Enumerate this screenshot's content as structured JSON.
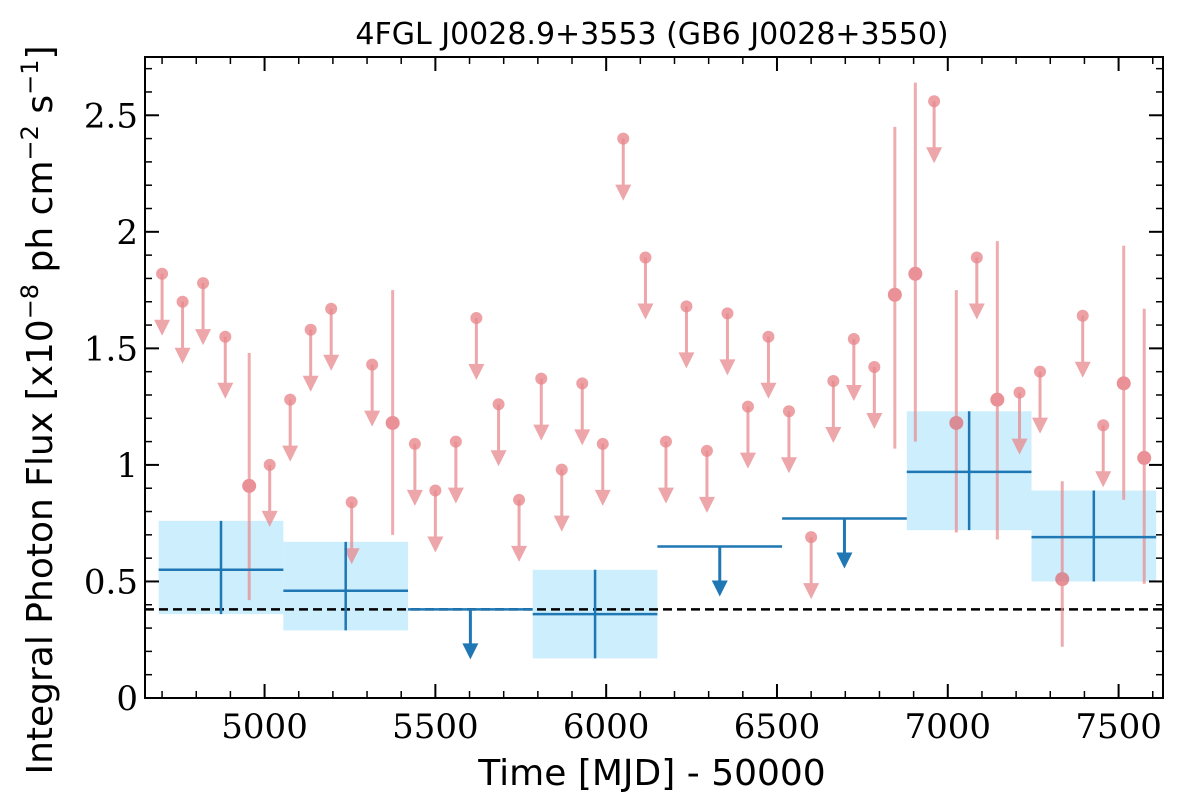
{
  "chart_data": {
    "type": "scatter",
    "title": "4FGL J0028.9+3553 (GB6 J0028+3550)",
    "xlabel": "Time [MJD] - 50000",
    "ylabel": "Integral Photon Flux [x10",
    "ylabel_exp1": "−8",
    "ylabel_mid": " ph cm",
    "ylabel_exp2": "−2",
    "ylabel_mid2": " s",
    "ylabel_exp3": "−1",
    "ylabel_end": "]",
    "xlim": [
      4650,
      7630
    ],
    "ylim": [
      0,
      2.75
    ],
    "xticks": [
      5000,
      5500,
      6000,
      6500,
      7000,
      7500
    ],
    "yticks": [
      0,
      0.5,
      1,
      1.5,
      2,
      2.5
    ],
    "ytick_labels": [
      "0",
      "0.5",
      "1",
      "1.5",
      "2",
      "2.5"
    ],
    "reference_level": 0.38,
    "colors": {
      "fine_bins": "#e8898e",
      "coarse_bins": "#1f77b4",
      "coarse_band": "#cdeefc",
      "reference_line": "#000000"
    },
    "fine_upper_limits": [
      {
        "x": 4700,
        "y": 1.82
      },
      {
        "x": 4760,
        "y": 1.7
      },
      {
        "x": 4820,
        "y": 1.78
      },
      {
        "x": 4885,
        "y": 1.55
      },
      {
        "x": 5015,
        "y": 1.0
      },
      {
        "x": 5075,
        "y": 1.28
      },
      {
        "x": 5135,
        "y": 1.58
      },
      {
        "x": 5195,
        "y": 1.67
      },
      {
        "x": 5255,
        "y": 0.84
      },
      {
        "x": 5315,
        "y": 1.43
      },
      {
        "x": 5440,
        "y": 1.09
      },
      {
        "x": 5500,
        "y": 0.89
      },
      {
        "x": 5560,
        "y": 1.1
      },
      {
        "x": 5620,
        "y": 1.63
      },
      {
        "x": 5685,
        "y": 1.26
      },
      {
        "x": 5745,
        "y": 0.85
      },
      {
        "x": 5810,
        "y": 1.37
      },
      {
        "x": 5870,
        "y": 0.98
      },
      {
        "x": 5930,
        "y": 1.35
      },
      {
        "x": 5990,
        "y": 1.09
      },
      {
        "x": 6050,
        "y": 2.4
      },
      {
        "x": 6115,
        "y": 1.89
      },
      {
        "x": 6175,
        "y": 1.1
      },
      {
        "x": 6235,
        "y": 1.68
      },
      {
        "x": 6295,
        "y": 1.06
      },
      {
        "x": 6355,
        "y": 1.65
      },
      {
        "x": 6415,
        "y": 1.25
      },
      {
        "x": 6475,
        "y": 1.55
      },
      {
        "x": 6535,
        "y": 1.23
      },
      {
        "x": 6600,
        "y": 0.69
      },
      {
        "x": 6665,
        "y": 1.36
      },
      {
        "x": 6725,
        "y": 1.54
      },
      {
        "x": 6785,
        "y": 1.42
      },
      {
        "x": 6960,
        "y": 2.56
      },
      {
        "x": 7085,
        "y": 1.89
      },
      {
        "x": 7210,
        "y": 1.31
      },
      {
        "x": 7270,
        "y": 1.4
      },
      {
        "x": 7395,
        "y": 1.64
      },
      {
        "x": 7455,
        "y": 1.17
      }
    ],
    "fine_detections": [
      {
        "x": 4955,
        "y": 0.91,
        "yerr_low": 0.42,
        "yerr_high": 1.48
      },
      {
        "x": 5375,
        "y": 1.18,
        "yerr_low": 0.7,
        "yerr_high": 1.75
      },
      {
        "x": 6845,
        "y": 1.73,
        "yerr_low": 1.07,
        "yerr_high": 2.45
      },
      {
        "x": 6905,
        "y": 1.82,
        "yerr_low": 1.1,
        "yerr_high": 2.64
      },
      {
        "x": 7025,
        "y": 1.18,
        "yerr_low": 0.71,
        "yerr_high": 1.75
      },
      {
        "x": 7145,
        "y": 1.28,
        "yerr_low": 0.68,
        "yerr_high": 1.96
      },
      {
        "x": 7335,
        "y": 0.51,
        "yerr_low": 0.22,
        "yerr_high": 0.93
      },
      {
        "x": 7515,
        "y": 1.35,
        "yerr_low": 0.85,
        "yerr_high": 1.94
      },
      {
        "x": 7575,
        "y": 1.03,
        "yerr_low": 0.49,
        "yerr_high": 1.67
      }
    ],
    "coarse_detections": [
      {
        "x0": 4690,
        "x1": 5055,
        "y": 0.55,
        "yerr_low": 0.36,
        "yerr_high": 0.76
      },
      {
        "x0": 5055,
        "x1": 5420,
        "y": 0.46,
        "yerr_low": 0.29,
        "yerr_high": 0.67
      },
      {
        "x0": 5785,
        "x1": 6150,
        "y": 0.36,
        "yerr_low": 0.17,
        "yerr_high": 0.55
      },
      {
        "x0": 6880,
        "x1": 7245,
        "y": 0.97,
        "yerr_low": 0.72,
        "yerr_high": 1.23
      },
      {
        "x0": 7245,
        "x1": 7610,
        "y": 0.69,
        "yerr_low": 0.5,
        "yerr_high": 0.89
      }
    ],
    "coarse_upper_limits": [
      {
        "x0": 5420,
        "x1": 5785,
        "y": 0.38
      },
      {
        "x0": 6150,
        "x1": 6515,
        "y": 0.65
      },
      {
        "x0": 6515,
        "x1": 6880,
        "y": 0.77
      }
    ]
  }
}
